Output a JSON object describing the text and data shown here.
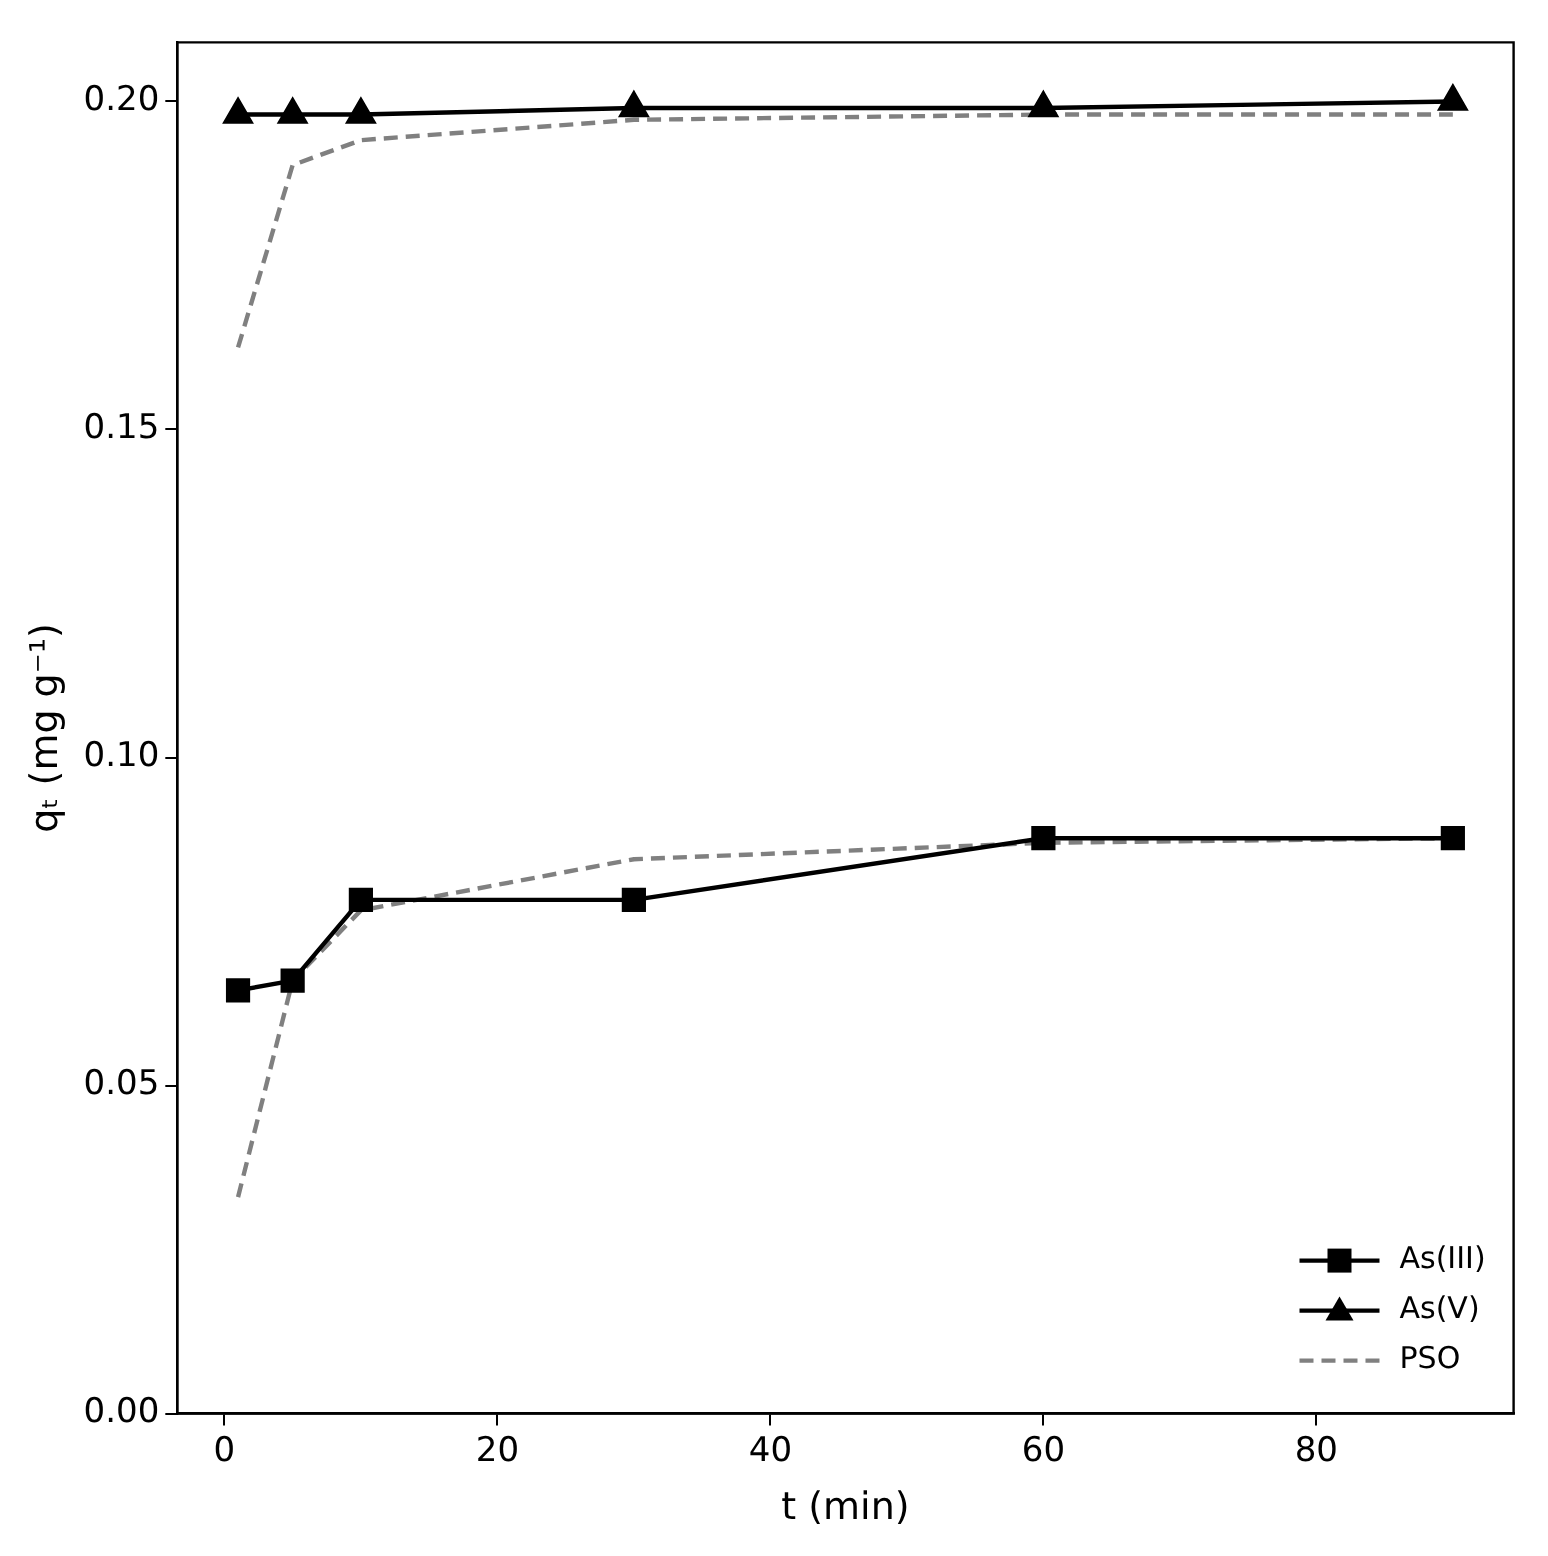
{
  "chart_data": {
    "type": "line",
    "xlabel": "t (min)",
    "ylabel": "qₜ (mg g⁻¹)",
    "xlim": [
      -3.45,
      94.45
    ],
    "ylim": [
      0,
      0.209
    ],
    "xticks": [
      0,
      20,
      40,
      60,
      80
    ],
    "yticks": [
      {
        "value": 0,
        "label": "0.00"
      },
      0.05,
      {
        "value": 0.1,
        "label": "0.10"
      },
      0.15,
      {
        "value": 0.2,
        "label": "0.20"
      }
    ],
    "grid": false,
    "legend": "bottom right",
    "x": [
      1,
      5,
      10,
      30,
      60,
      90
    ],
    "series": [
      {
        "name": "As(III)",
        "color": "#000000",
        "marker": "square",
        "line_style": "solid",
        "values": [
          0.0645,
          0.066,
          0.0783,
          0.0783,
          0.0877,
          0.0877
        ]
      },
      {
        "name": "As(V)",
        "color": "#000000",
        "marker": "triangle",
        "line_style": "solid",
        "values": [
          0.198,
          0.198,
          0.198,
          0.199,
          0.199,
          0.2
        ]
      },
      {
        "name": "PSO",
        "color": "#808080",
        "marker": "none",
        "line_style": "dashed",
        "values": [
          0.033,
          0.066,
          0.0767,
          0.0845,
          0.087,
          0.0877
        ]
      },
      {
        "color": "#808080",
        "marker": "none",
        "line_style": "dashed",
        "values": [
          0.1625,
          0.1903,
          0.1941,
          0.1972,
          0.198,
          0.198
        ]
      }
    ]
  }
}
